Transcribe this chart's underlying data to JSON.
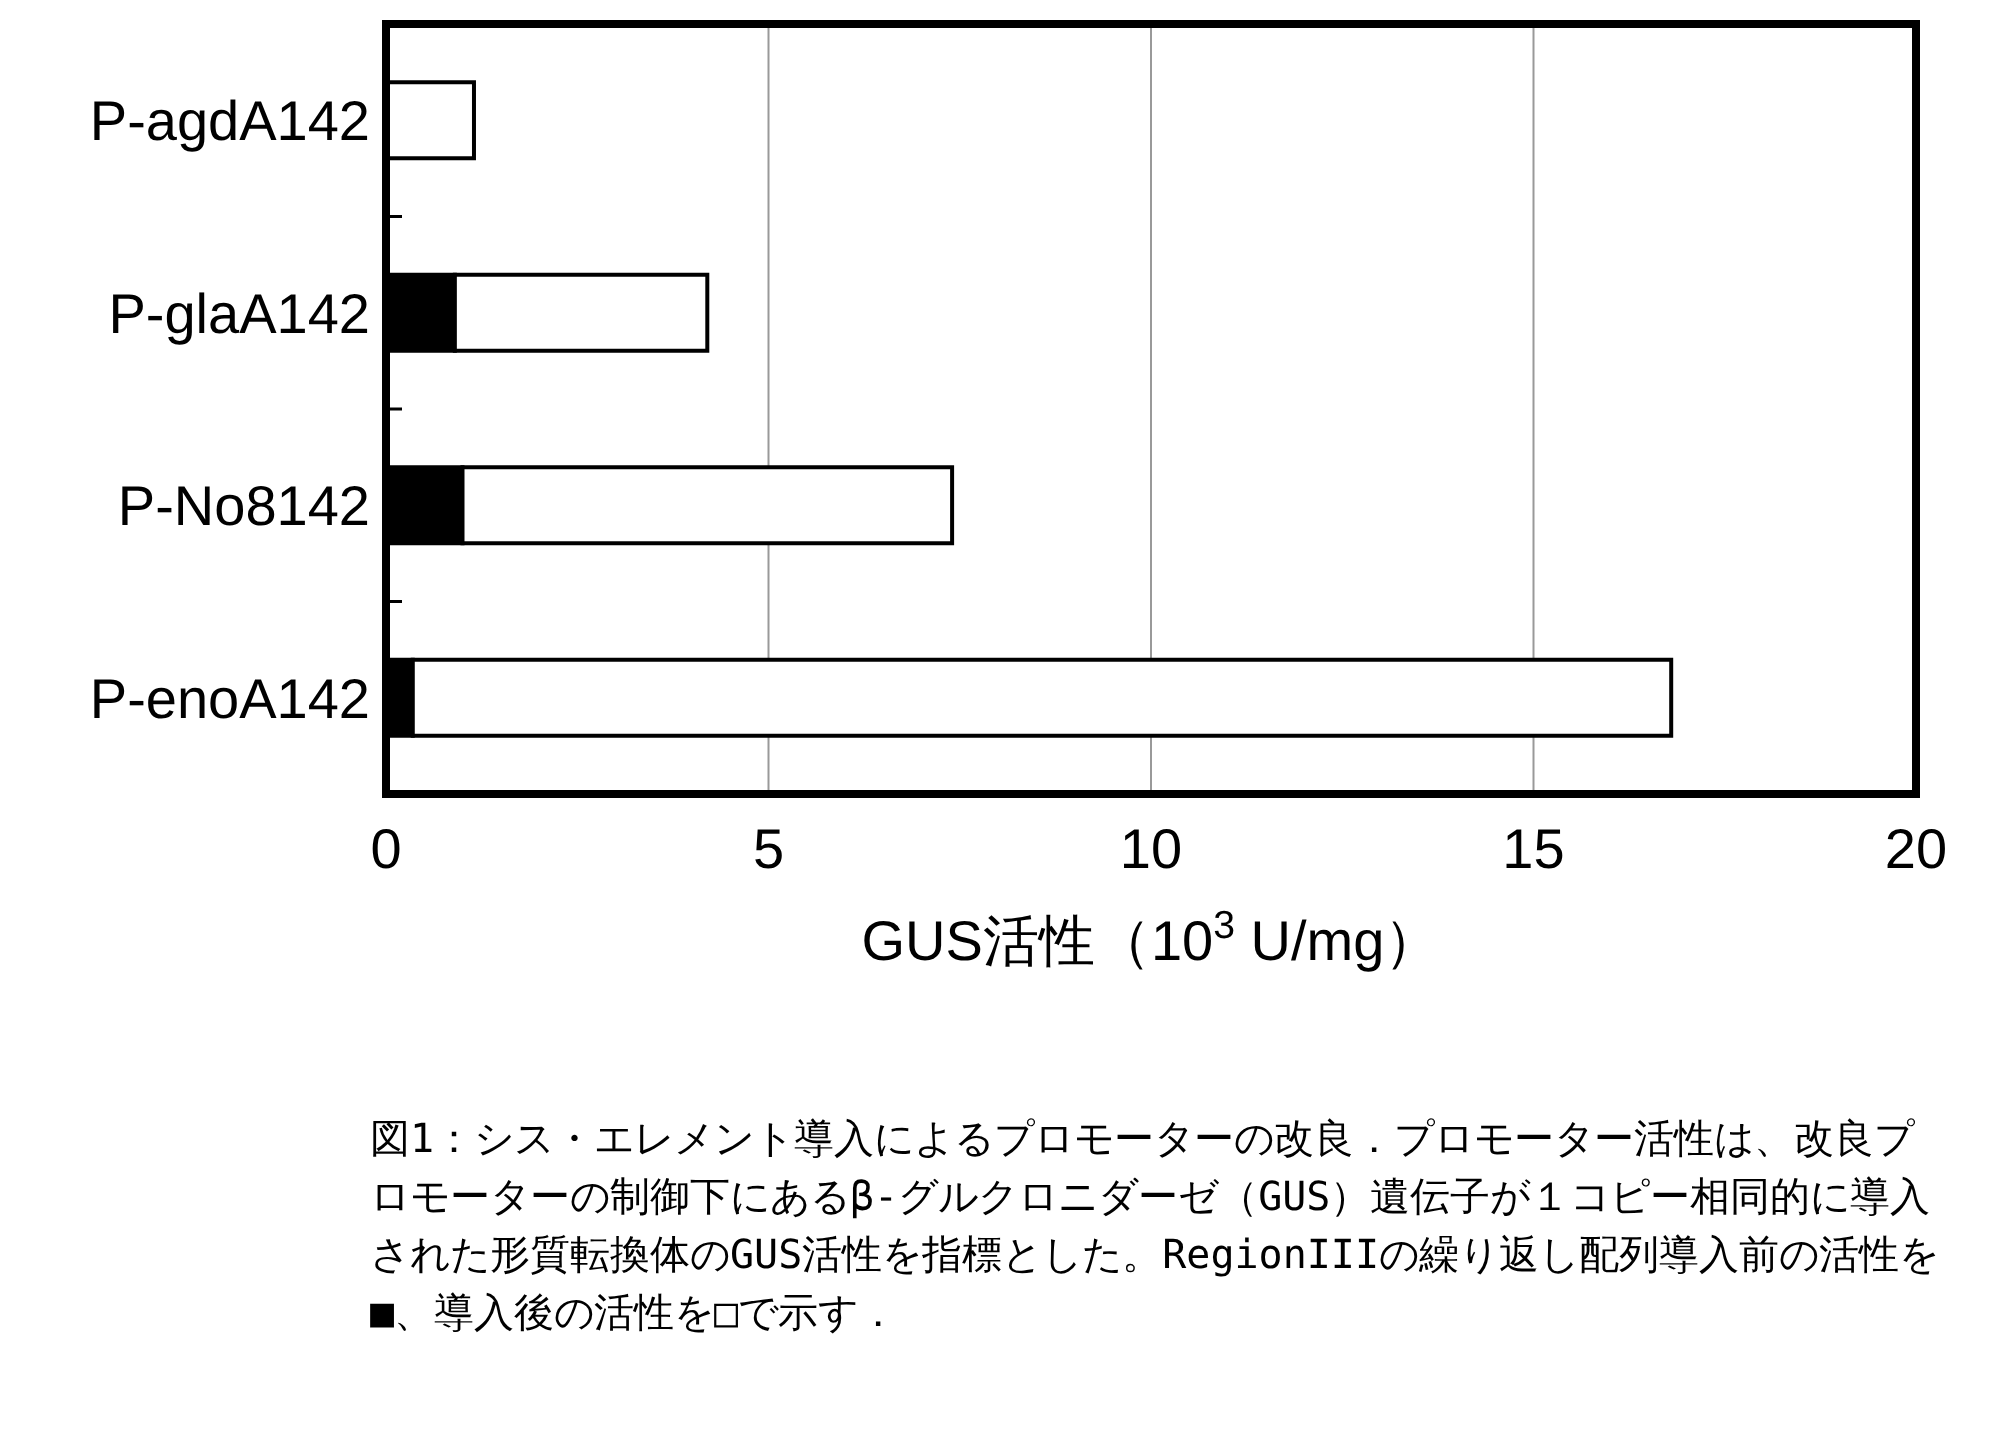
{
  "chart_data": {
    "type": "bar",
    "orientation": "horizontal",
    "stacked": true,
    "categories": [
      "P-agdA142",
      "P-glaA142",
      "P-No8142",
      "P-enoA142"
    ],
    "series": [
      {
        "color": "#000000",
        "values": [
          null,
          0.9,
          1.0,
          0.35
        ]
      },
      {
        "color": "#ffffff",
        "values": [
          1.15,
          3.3,
          6.4,
          16.45
        ]
      }
    ],
    "xlim": [
      0,
      20
    ],
    "xticks": [
      0,
      5,
      10,
      15,
      20
    ],
    "grid": "x",
    "xlabel": "GUS活性（10$^{3}$ U/mg）",
    "annotations": [
      "図1：シス・エレメント導入によるプロモーターの改良．プロモーター活性は、改良プロモーターの制御下にあるβ‐グルクロニダーゼ（GUS）遺伝子が１コピー相同的に導入された形質転換体のGUS活性を指標とした。RegionIIIの繰り返し配列導入前の活性を■、導入後の活性を□で示す．"
    ]
  }
}
